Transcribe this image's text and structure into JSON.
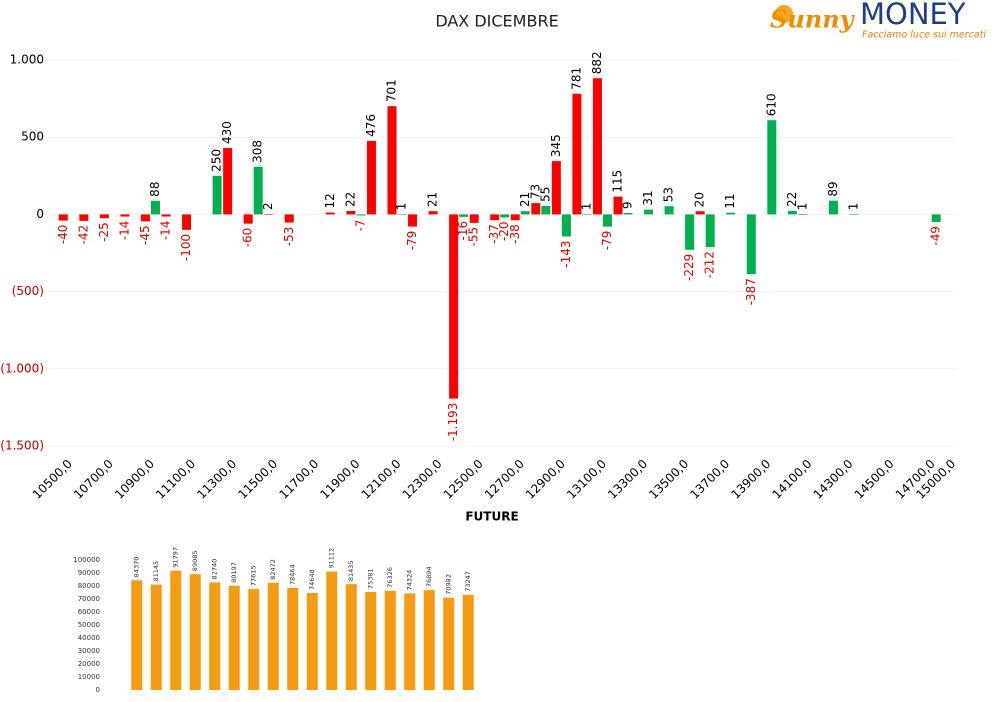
{
  "logo": {
    "brand": "Sunny",
    "name": "MONEY",
    "tagline": "Facciamo luce sui mercati"
  },
  "chart_data": [
    {
      "type": "bar",
      "title": "DAX DICEMBRE",
      "categories": [
        "10500,0",
        null,
        "10700,0",
        null,
        "10900,0",
        null,
        "11100,0",
        null,
        "11300,0",
        null,
        "11500,0",
        null,
        "11700,0",
        null,
        "11900,0",
        null,
        "12100,0",
        null,
        "12300,0",
        null,
        "12500,0",
        null,
        "12700,0",
        null,
        "12900,0",
        null,
        "13100,0",
        null,
        "13300,0",
        null,
        "13500,0",
        null,
        "13700,0",
        null,
        "13900,0",
        null,
        "14100,0",
        null,
        "14300,0",
        null,
        "14500,0",
        null,
        "14700,0",
        "15000,0"
      ],
      "series": [
        {
          "color": "#ff0000",
          "values": [
            -40,
            -42,
            -25,
            -14,
            -45,
            -14,
            -100,
            null,
            430,
            -60,
            2,
            -53,
            null,
            12,
            22,
            476,
            701,
            -79,
            21,
            -1193,
            -55,
            -37,
            -38,
            73,
            345,
            781,
            882,
            115,
            null,
            null,
            null,
            20,
            null,
            null,
            null,
            null,
            1,
            null,
            null,
            null,
            null,
            null,
            null,
            null
          ],
          "value_labels": [
            "-40",
            "-42",
            "-25",
            "-14",
            "-45",
            "-14",
            "-100",
            null,
            "430",
            "-60",
            "2",
            "-53",
            null,
            "12",
            "22",
            "476",
            "701",
            "-79",
            "21",
            "-1.193",
            "-55",
            "-37",
            "-38",
            "73",
            "345",
            "781",
            "882",
            "115",
            null,
            null,
            null,
            "20",
            null,
            null,
            null,
            null,
            "1",
            null,
            null,
            null,
            null,
            null,
            null,
            null
          ]
        },
        {
          "color": "#00b050",
          "values": [
            null,
            null,
            null,
            null,
            88,
            null,
            null,
            250,
            null,
            308,
            null,
            null,
            null,
            null,
            -7,
            null,
            1,
            null,
            null,
            -16,
            null,
            -20,
            21,
            55,
            -143,
            1,
            -79,
            9,
            31,
            53,
            -229,
            -212,
            11,
            -387,
            610,
            22,
            null,
            89,
            1,
            null,
            null,
            null,
            -49,
            null
          ]
        }
      ],
      "ylim": [
        -1500,
        1000
      ],
      "yticks": [
        {
          "value": 1000,
          "label": "1.000"
        },
        500,
        0,
        {
          "value": -500,
          "label": "(500)"
        },
        {
          "value": -1000,
          "label": "(1.000)"
        },
        {
          "value": -1500,
          "label": "(1.500)"
        }
      ],
      "grid": true
    },
    {
      "type": "bar",
      "title": "FUTURE",
      "color": "#f39c12",
      "values": [
        84370,
        81145,
        91797,
        89085,
        82740,
        80197,
        77615,
        82472,
        78464,
        74648,
        91112,
        81435,
        75381,
        76326,
        74324,
        76894,
        70982,
        73247
      ],
      "ylim": [
        0,
        100000
      ],
      "yticks": [
        0,
        10000,
        20000,
        30000,
        40000,
        50000,
        60000,
        70000,
        80000,
        90000,
        100000
      ]
    }
  ]
}
